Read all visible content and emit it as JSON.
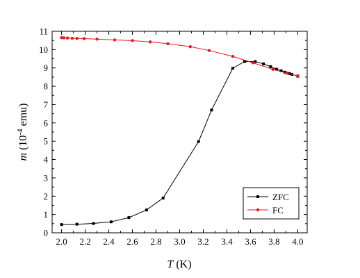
{
  "chart_data": {
    "type": "line",
    "xlabel_main": "T",
    "xlabel_unit": " (K)",
    "ylabel_main": "m",
    "ylabel_unit_pre": " (10",
    "ylabel_exp": "-4",
    "ylabel_unit_post": " emu)",
    "xlim": [
      1.92,
      4.08
    ],
    "ylim": [
      0,
      11
    ],
    "xticks": [
      2.0,
      2.2,
      2.4,
      2.6,
      2.8,
      3.0,
      3.2,
      3.4,
      3.6,
      3.8,
      4.0
    ],
    "xtick_labels": [
      "2.0",
      "2.2",
      "2.4",
      "2.6",
      "2.8",
      "3.0",
      "3.2",
      "3.4",
      "3.6",
      "3.8",
      "4.0"
    ],
    "yticks": [
      0,
      1,
      2,
      3,
      4,
      5,
      6,
      7,
      8,
      9,
      10,
      11
    ],
    "ytick_labels": [
      "0",
      "1",
      "2",
      "3",
      "4",
      "5",
      "6",
      "7",
      "8",
      "9",
      "10",
      "11"
    ],
    "grid": false,
    "legend_position": "bottom-right",
    "series": [
      {
        "name": "ZFC",
        "color": "#000000",
        "marker": "square",
        "x": [
          2.0,
          2.13,
          2.27,
          2.42,
          2.57,
          2.72,
          2.86,
          3.16,
          3.27,
          3.45,
          3.55,
          3.64,
          3.71,
          3.77,
          3.82,
          3.86,
          3.89,
          3.91,
          3.93,
          3.95,
          4.0
        ],
        "y": [
          0.45,
          0.47,
          0.51,
          0.6,
          0.83,
          1.25,
          1.9,
          4.98,
          6.7,
          8.98,
          9.35,
          9.35,
          9.22,
          9.07,
          8.93,
          8.84,
          8.77,
          8.72,
          8.69,
          8.65,
          8.55
        ]
      },
      {
        "name": "FC",
        "color": "#e41a1c",
        "marker": "circle",
        "x": [
          2.0,
          2.02,
          2.05,
          2.09,
          2.13,
          2.19,
          2.3,
          2.45,
          2.6,
          2.75,
          2.9,
          3.09,
          3.25,
          3.45,
          3.62,
          3.79,
          3.91,
          4.0
        ],
        "y": [
          10.65,
          10.64,
          10.63,
          10.62,
          10.61,
          10.6,
          10.57,
          10.53,
          10.49,
          10.42,
          10.32,
          10.16,
          9.95,
          9.63,
          9.28,
          8.92,
          8.72,
          8.57
        ]
      }
    ]
  }
}
